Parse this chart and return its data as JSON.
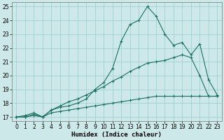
{
  "xlabel": "Humidex (Indice chaleur)",
  "xlim": [
    -0.5,
    23.5
  ],
  "ylim": [
    16.7,
    25.3
  ],
  "xticks": [
    0,
    1,
    2,
    3,
    4,
    5,
    6,
    7,
    8,
    9,
    10,
    11,
    12,
    13,
    14,
    15,
    16,
    17,
    18,
    19,
    20,
    21,
    22,
    23
  ],
  "yticks": [
    17,
    18,
    19,
    20,
    21,
    22,
    23,
    24,
    25
  ],
  "bg_color": "#cce8e8",
  "grid_color": "#99cccc",
  "line_color": "#1a7060",
  "line1_x": [
    0,
    1,
    2,
    3,
    4,
    5,
    6,
    7,
    8,
    9,
    10,
    11,
    12,
    13,
    14,
    15,
    16,
    17,
    18,
    19,
    20,
    21,
    22,
    23
  ],
  "line1_y": [
    17.0,
    17.1,
    17.3,
    17.0,
    17.5,
    17.7,
    17.8,
    18.0,
    18.3,
    19.0,
    19.5,
    20.5,
    22.5,
    23.7,
    24.0,
    25.0,
    24.3,
    23.0,
    22.2,
    22.4,
    21.5,
    22.3,
    19.7,
    18.6
  ],
  "line2_x": [
    0,
    1,
    2,
    3,
    4,
    5,
    6,
    7,
    8,
    9,
    10,
    11,
    12,
    13,
    14,
    15,
    16,
    17,
    18,
    19,
    20,
    21,
    22,
    23
  ],
  "line2_y": [
    17.0,
    17.0,
    17.2,
    17.0,
    17.5,
    17.8,
    18.1,
    18.3,
    18.6,
    18.9,
    19.2,
    19.6,
    19.9,
    20.3,
    20.6,
    20.9,
    21.0,
    21.1,
    21.3,
    21.5,
    21.3,
    20.0,
    18.5,
    18.5
  ],
  "line3_x": [
    0,
    1,
    2,
    3,
    4,
    5,
    6,
    7,
    8,
    9,
    10,
    11,
    12,
    13,
    14,
    15,
    16,
    17,
    18,
    19,
    20,
    21,
    22,
    23
  ],
  "line3_y": [
    17.0,
    17.0,
    17.1,
    17.0,
    17.3,
    17.4,
    17.5,
    17.6,
    17.7,
    17.8,
    17.9,
    18.0,
    18.1,
    18.2,
    18.3,
    18.4,
    18.5,
    18.5,
    18.5,
    18.5,
    18.5,
    18.5,
    18.5,
    18.5
  ]
}
